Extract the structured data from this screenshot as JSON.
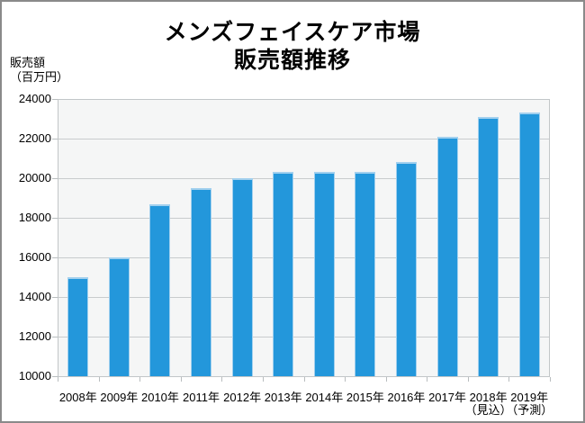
{
  "window": {
    "border_color": "#8a8a8a",
    "background": "#ffffff"
  },
  "title": {
    "line1": "メンズフェイスケア市場",
    "line2": "販売額推移"
  },
  "y_axis_unit": {
    "line1": "販売額",
    "line2": "（百万円）"
  },
  "chart_data": {
    "type": "bar",
    "title": "メンズフェイスケア市場 販売額推移",
    "xlabel": "",
    "ylabel": "販売額（百万円）",
    "ylim": [
      10000,
      24000
    ],
    "yticks": [
      24000,
      22000,
      20000,
      18000,
      16000,
      14000,
      12000,
      10000
    ],
    "grid": true,
    "legend": false,
    "categories": [
      "2008年",
      "2009年",
      "2010年",
      "2011年",
      "2012年",
      "2013年",
      "2014年",
      "2015年",
      "2016年",
      "2017年",
      "2018年",
      "2019年"
    ],
    "category_sublabels": [
      "",
      "",
      "",
      "",
      "",
      "",
      "",
      "",
      "",
      "",
      "（見込）",
      "（予測）"
    ],
    "values": [
      15000,
      16000,
      18700,
      19500,
      20000,
      20300,
      20300,
      20300,
      20800,
      22100,
      23100,
      23300
    ],
    "colors": {
      "bar_fill": "#2397db",
      "bar_edge": "#a2d0ee",
      "plot_background": "#f5f6f6",
      "gridline": "#c8cccd",
      "plot_border": "#c2c6c8",
      "tick": "#b9bdbf",
      "text": "#000000"
    }
  }
}
